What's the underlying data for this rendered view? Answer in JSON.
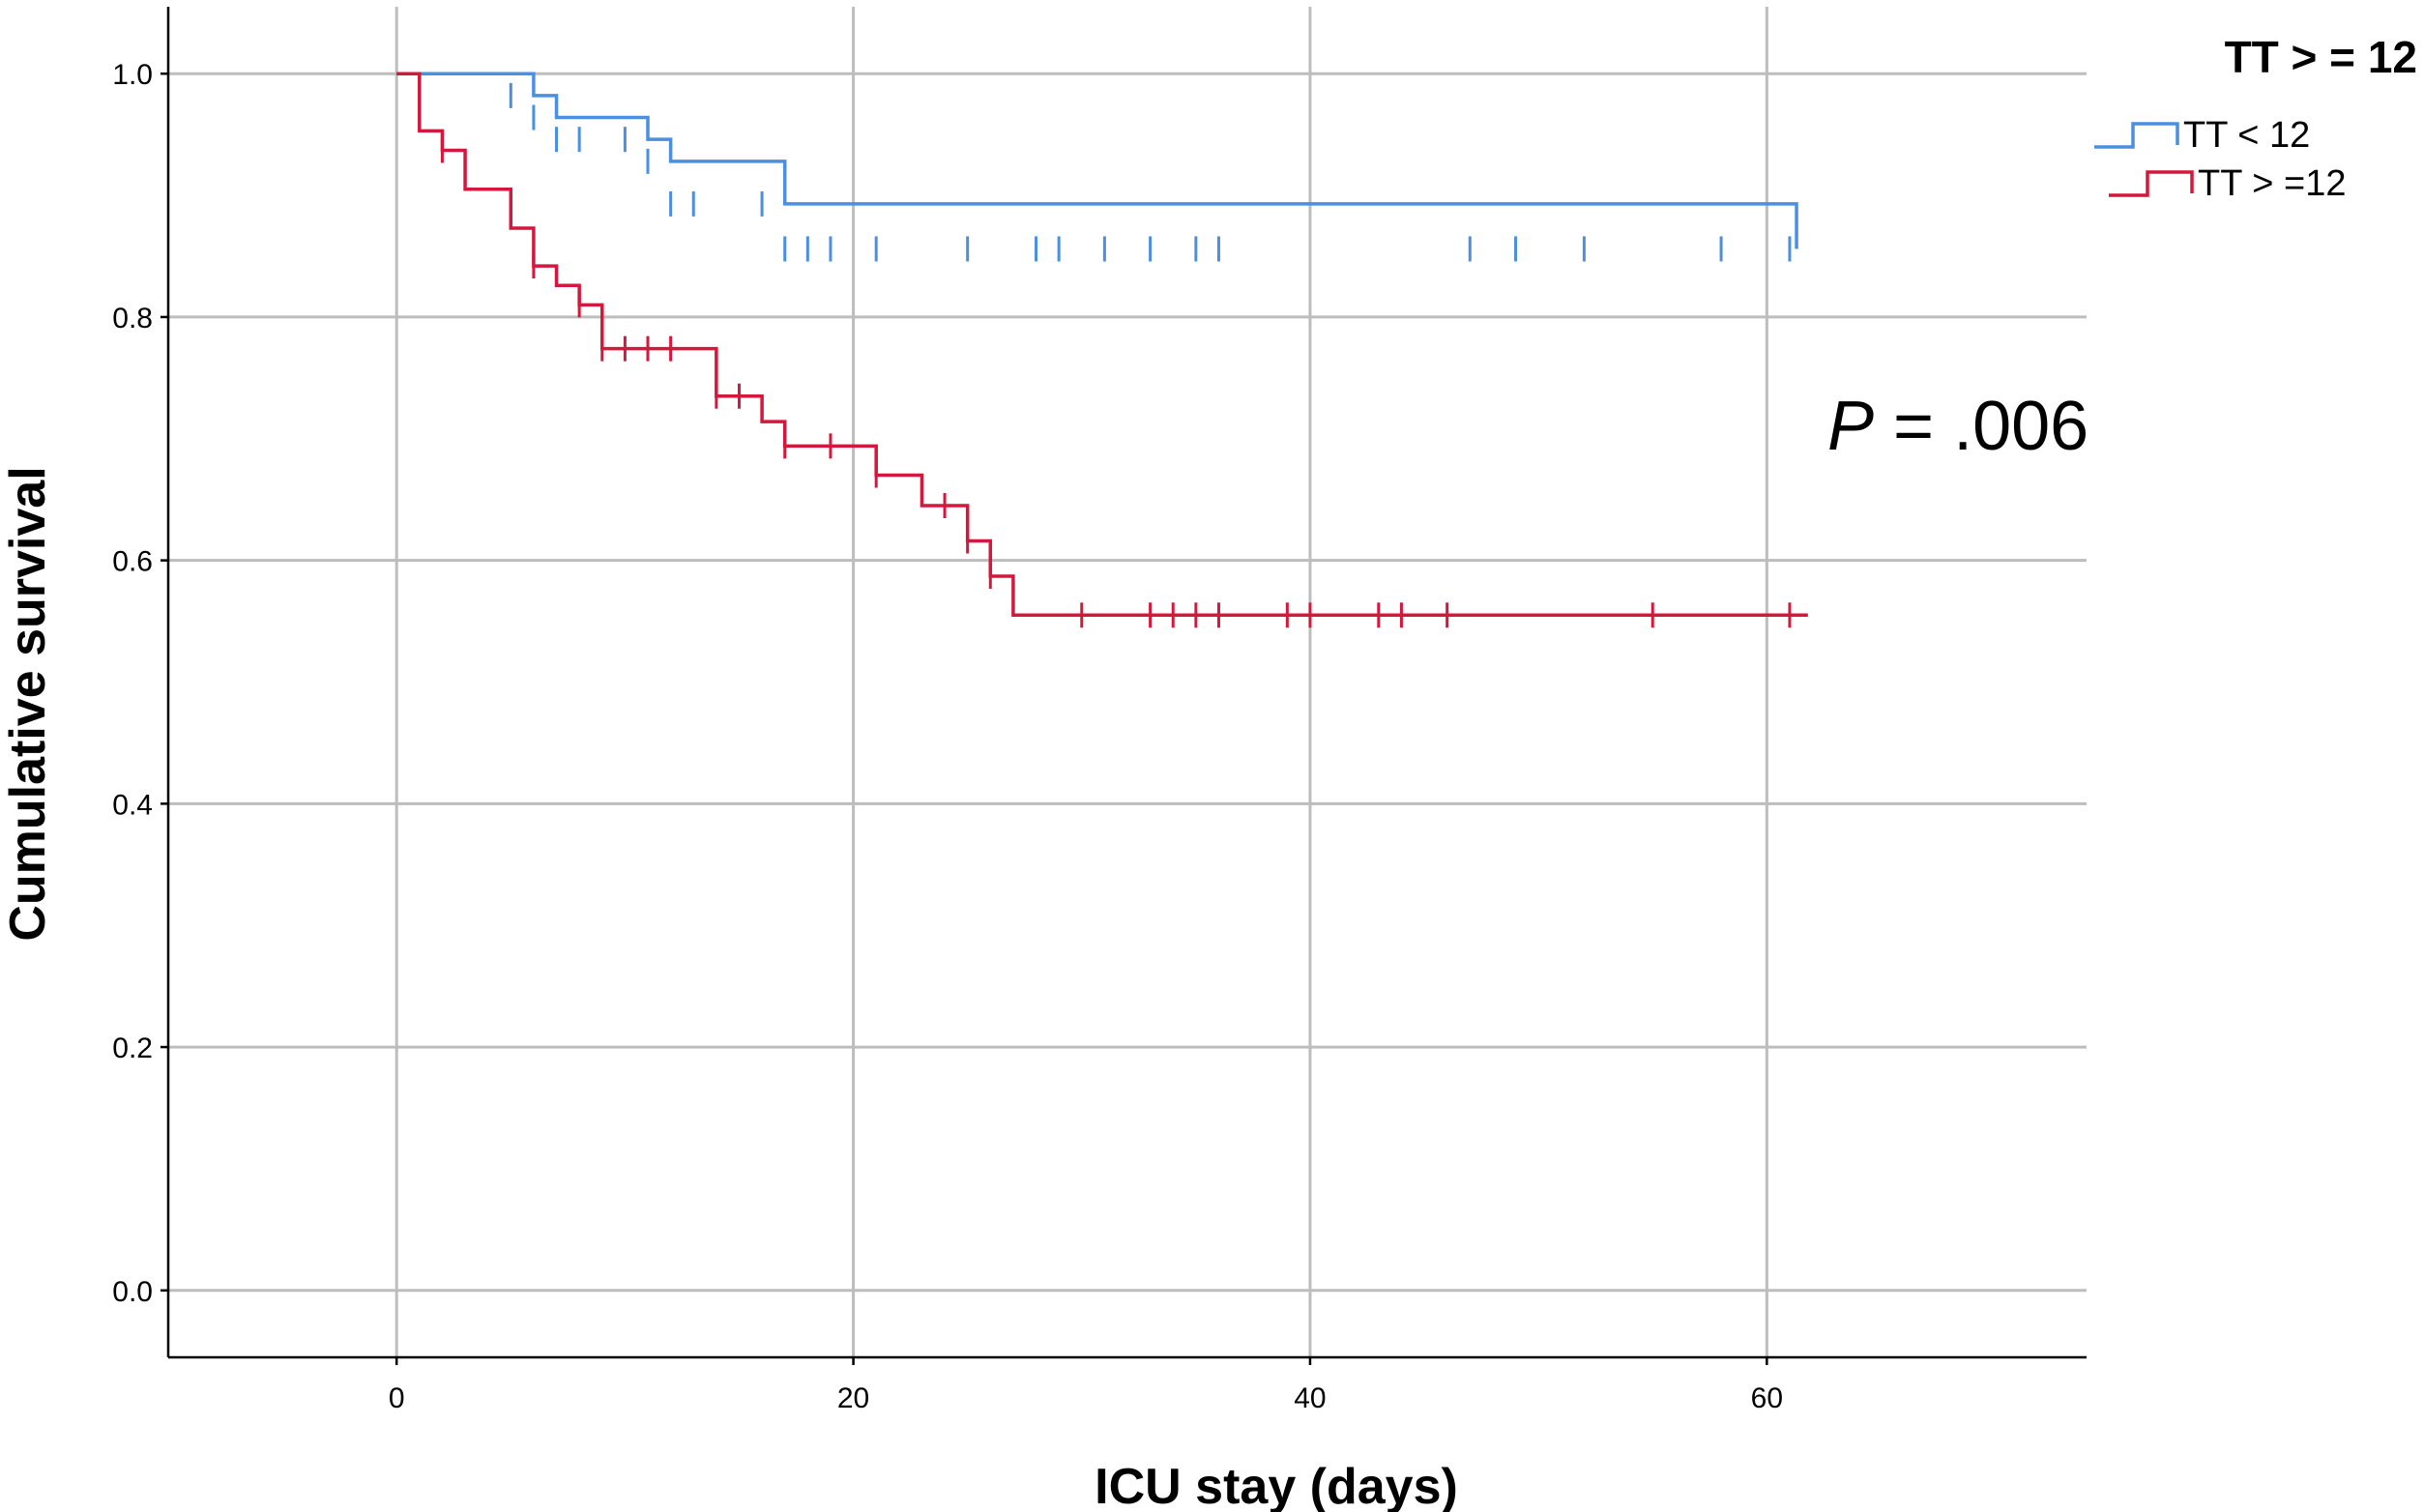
{
  "chart_data": {
    "type": "line",
    "subtype": "kaplan-meier",
    "xlabel": "ICU stay (days)",
    "ylabel": "Cumulative survival",
    "xlim": [
      -10,
      74
    ],
    "ylim": [
      -0.055,
      1.055
    ],
    "xticks": [
      0,
      20,
      40,
      60
    ],
    "yticks": [
      0.0,
      0.2,
      0.4,
      0.6,
      0.8,
      1.0
    ],
    "xtick_labels": [
      "0",
      "20",
      "40",
      "60"
    ],
    "ytick_labels": [
      "0.0",
      "0.2",
      "0.4",
      "0.6",
      "0.8",
      "1.0"
    ],
    "grid": true,
    "legend": {
      "title": "TT > = 12",
      "placement": "top-right"
    },
    "annotation": {
      "italic": "P",
      "rest": " = .006"
    },
    "series": [
      {
        "name": "TT < 12",
        "color": "#4a8fe0",
        "end_x": 61.3,
        "steps": [
          [
            0,
            1.0
          ],
          [
            6,
            0.982
          ],
          [
            7,
            0.964
          ],
          [
            11,
            0.946
          ],
          [
            12,
            0.928
          ],
          [
            17,
            0.893
          ],
          [
            61.3,
            0.856
          ]
        ],
        "censored": [
          [
            5,
            0.982
          ],
          [
            6,
            0.964
          ],
          [
            7,
            0.946
          ],
          [
            8,
            0.946
          ],
          [
            10,
            0.946
          ],
          [
            11,
            0.928
          ],
          [
            12,
            0.893
          ],
          [
            13,
            0.893
          ],
          [
            16,
            0.893
          ],
          [
            17,
            0.856
          ],
          [
            18,
            0.856
          ],
          [
            19,
            0.856
          ],
          [
            21,
            0.856
          ],
          [
            25,
            0.856
          ],
          [
            28,
            0.856
          ],
          [
            29,
            0.856
          ],
          [
            31,
            0.856
          ],
          [
            33,
            0.856
          ],
          [
            35,
            0.856
          ],
          [
            36,
            0.856
          ],
          [
            47,
            0.856
          ],
          [
            49,
            0.856
          ],
          [
            52,
            0.856
          ],
          [
            58,
            0.856
          ],
          [
            61,
            0.856
          ]
        ]
      },
      {
        "name": "TT > =12",
        "color": "#d4173c",
        "end_x": 61.8,
        "steps": [
          [
            0,
            1.0
          ],
          [
            1,
            0.953
          ],
          [
            2,
            0.937
          ],
          [
            3,
            0.905
          ],
          [
            5,
            0.873
          ],
          [
            6,
            0.842
          ],
          [
            7,
            0.826
          ],
          [
            8,
            0.81
          ],
          [
            9,
            0.774
          ],
          [
            14,
            0.735
          ],
          [
            16,
            0.714
          ],
          [
            17,
            0.694
          ],
          [
            21,
            0.67
          ],
          [
            23,
            0.645
          ],
          [
            25,
            0.616
          ],
          [
            26,
            0.587
          ],
          [
            27,
            0.555
          ],
          [
            61.8,
            0.555
          ]
        ],
        "censored": [
          [
            2,
            0.937
          ],
          [
            6,
            0.842
          ],
          [
            8,
            0.81
          ],
          [
            9,
            0.774
          ],
          [
            10,
            0.774
          ],
          [
            11,
            0.774
          ],
          [
            12,
            0.774
          ],
          [
            14,
            0.735
          ],
          [
            15,
            0.735
          ],
          [
            17,
            0.694
          ],
          [
            19,
            0.694
          ],
          [
            21,
            0.67
          ],
          [
            24,
            0.645
          ],
          [
            25,
            0.616
          ],
          [
            26,
            0.587
          ],
          [
            30,
            0.555
          ],
          [
            33,
            0.555
          ],
          [
            34,
            0.555
          ],
          [
            35,
            0.555
          ],
          [
            36,
            0.555
          ],
          [
            39,
            0.555
          ],
          [
            40,
            0.555
          ],
          [
            43,
            0.555
          ],
          [
            44,
            0.555
          ],
          [
            46,
            0.555
          ],
          [
            55,
            0.555
          ],
          [
            61,
            0.555
          ]
        ]
      }
    ]
  }
}
